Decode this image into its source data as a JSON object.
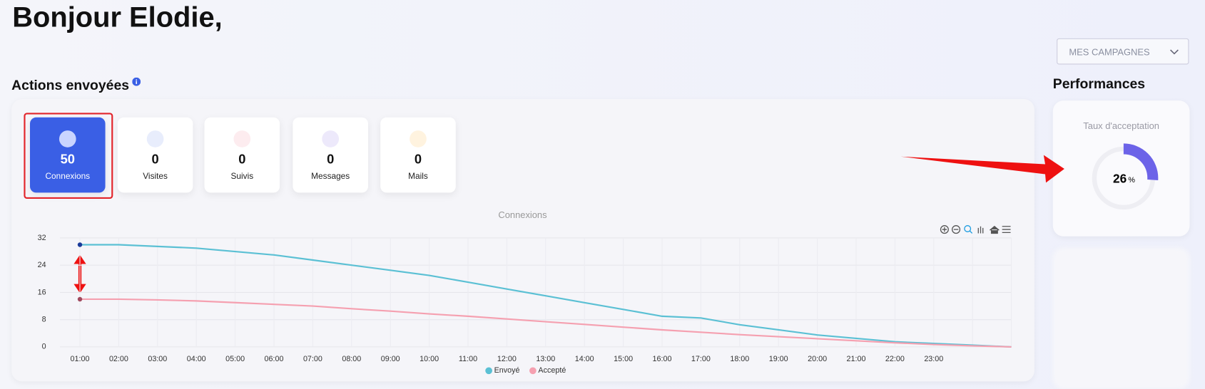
{
  "greeting": "Bonjour Elodie,",
  "campaign_select": "MES CAMPAGNES",
  "section_title": "Actions envoyées",
  "cards": [
    {
      "value": 50,
      "label": "Connexions",
      "icon": "#c9d4ff"
    },
    {
      "value": 0,
      "label": "Visites",
      "icon": "#e8edfc"
    },
    {
      "value": 0,
      "label": "Suivis",
      "icon": "#fdecef"
    },
    {
      "value": 0,
      "label": "Messages",
      "icon": "#ede9fb"
    },
    {
      "value": 0,
      "label": "Mails",
      "icon": "#fff3df"
    }
  ],
  "performance": {
    "title": "Performances",
    "metric": "Taux d'acceptation",
    "value": 26,
    "unit": "%",
    "color": "#6c63e8"
  },
  "chart_data": {
    "type": "line",
    "title": "Connexions",
    "categories": [
      "01:00",
      "02:00",
      "03:00",
      "04:00",
      "05:00",
      "06:00",
      "07:00",
      "08:00",
      "09:00",
      "10:00",
      "11:00",
      "12:00",
      "13:00",
      "14:00",
      "15:00",
      "16:00",
      "17:00",
      "18:00",
      "19:00",
      "20:00",
      "21:00",
      "22:00",
      "23:00",
      null,
      null
    ],
    "series": [
      {
        "name": "Envoyé",
        "color": "#5bc0d4",
        "values": [
          30,
          30,
          29.5,
          29,
          28,
          27,
          25.5,
          24,
          22.5,
          21,
          19,
          17,
          15,
          13,
          11,
          9,
          8.5,
          6.5,
          5,
          3.5,
          2.5,
          1.5,
          1,
          0.5,
          0
        ]
      },
      {
        "name": "Accepté",
        "color": "#f5a0b0",
        "values": [
          14,
          14,
          13.8,
          13.5,
          13,
          12.5,
          12,
          11.2,
          10.5,
          9.7,
          9,
          8.2,
          7.4,
          6.6,
          5.8,
          5,
          4.3,
          3.6,
          3,
          2.4,
          1.8,
          1.2,
          0.7,
          0.3,
          0
        ]
      }
    ],
    "ylim": [
      0,
      32
    ],
    "yticks": [
      0,
      8,
      16,
      24,
      32
    ],
    "grid": true
  }
}
